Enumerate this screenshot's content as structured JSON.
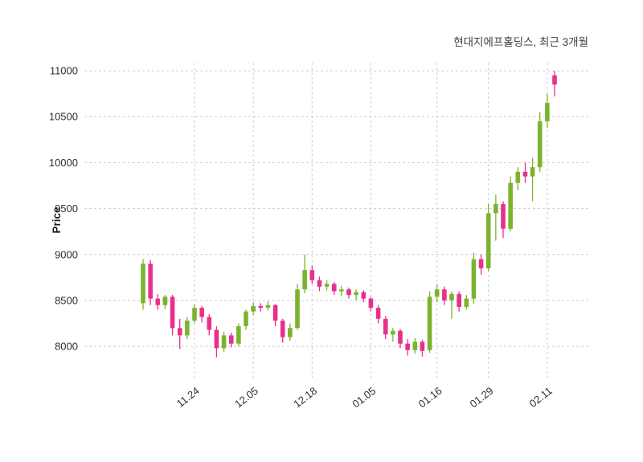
{
  "chart_data": {
    "type": "candlestick",
    "title": "현대지에프홀딩스, 최근 3개월",
    "ylabel": "Price",
    "ylim": [
      7660,
      11088
    ],
    "yticks": [
      8000,
      8500,
      9000,
      9500,
      10000,
      10500,
      11000
    ],
    "xticks": [
      {
        "i": 7,
        "label": "11.24"
      },
      {
        "i": 15,
        "label": "12.05"
      },
      {
        "i": 23,
        "label": "12.18"
      },
      {
        "i": 31,
        "label": "01.05"
      },
      {
        "i": 40,
        "label": "01.16"
      },
      {
        "i": 47,
        "label": "01.29"
      },
      {
        "i": 55,
        "label": "02.11"
      }
    ],
    "grid": "dashed",
    "legend": "none",
    "colors": {
      "up": "#7cb32e",
      "down": "#e8308a",
      "grid": "#cdcdcd",
      "text": "#2e2e2e",
      "background": "#ffffff"
    },
    "candles_format": [
      "open",
      "high",
      "low",
      "close"
    ],
    "candles": [
      [
        8470,
        8950,
        8400,
        8900
      ],
      [
        8900,
        8940,
        8450,
        8520
      ],
      [
        8520,
        8570,
        8400,
        8450
      ],
      [
        8450,
        8560,
        8410,
        8540
      ],
      [
        8540,
        8560,
        8120,
        8200
      ],
      [
        8200,
        8300,
        7970,
        8120
      ],
      [
        8120,
        8320,
        8080,
        8280
      ],
      [
        8280,
        8460,
        8250,
        8420
      ],
      [
        8420,
        8440,
        8260,
        8320
      ],
      [
        8320,
        8350,
        8120,
        8180
      ],
      [
        8180,
        8220,
        7880,
        7980
      ],
      [
        7980,
        8160,
        7940,
        8120
      ],
      [
        8120,
        8150,
        7990,
        8030
      ],
      [
        8030,
        8250,
        8000,
        8220
      ],
      [
        8220,
        8400,
        8180,
        8380
      ],
      [
        8380,
        8480,
        8340,
        8440
      ],
      [
        8440,
        8470,
        8380,
        8420
      ],
      [
        8420,
        8490,
        8390,
        8450
      ],
      [
        8450,
        8460,
        8220,
        8280
      ],
      [
        8280,
        8300,
        8040,
        8100
      ],
      [
        8100,
        8250,
        8060,
        8200
      ],
      [
        8200,
        8680,
        8180,
        8620
      ],
      [
        8620,
        9000,
        8580,
        8830
      ],
      [
        8830,
        8880,
        8680,
        8720
      ],
      [
        8720,
        8760,
        8600,
        8650
      ],
      [
        8650,
        8720,
        8610,
        8680
      ],
      [
        8680,
        8700,
        8560,
        8600
      ],
      [
        8600,
        8660,
        8550,
        8620
      ],
      [
        8620,
        8640,
        8520,
        8560
      ],
      [
        8560,
        8620,
        8500,
        8590
      ],
      [
        8590,
        8610,
        8480,
        8520
      ],
      [
        8520,
        8540,
        8380,
        8420
      ],
      [
        8420,
        8450,
        8250,
        8300
      ],
      [
        8300,
        8330,
        8080,
        8130
      ],
      [
        8130,
        8200,
        8050,
        8170
      ],
      [
        8170,
        8190,
        7980,
        8030
      ],
      [
        8030,
        8080,
        7900,
        7960
      ],
      [
        7960,
        8090,
        7920,
        8050
      ],
      [
        8050,
        8070,
        7890,
        7950
      ],
      [
        7960,
        8600,
        7930,
        8540
      ],
      [
        8540,
        8680,
        8480,
        8620
      ],
      [
        8620,
        8650,
        8450,
        8500
      ],
      [
        8500,
        8600,
        8300,
        8570
      ],
      [
        8570,
        8600,
        8380,
        8430
      ],
      [
        8430,
        8560,
        8400,
        8520
      ],
      [
        8520,
        9020,
        8460,
        8950
      ],
      [
        8950,
        9000,
        8780,
        8850
      ],
      [
        8850,
        9550,
        8820,
        9450
      ],
      [
        9450,
        9650,
        9150,
        9550
      ],
      [
        9550,
        9580,
        9180,
        9280
      ],
      [
        9280,
        9850,
        9250,
        9780
      ],
      [
        9780,
        9950,
        9700,
        9900
      ],
      [
        9900,
        10000,
        9780,
        9850
      ],
      [
        9850,
        10050,
        9580,
        9950
      ],
      [
        9950,
        10550,
        9900,
        10450
      ],
      [
        10450,
        10750,
        10380,
        10650
      ],
      [
        10950,
        11000,
        10720,
        10850
      ]
    ]
  }
}
